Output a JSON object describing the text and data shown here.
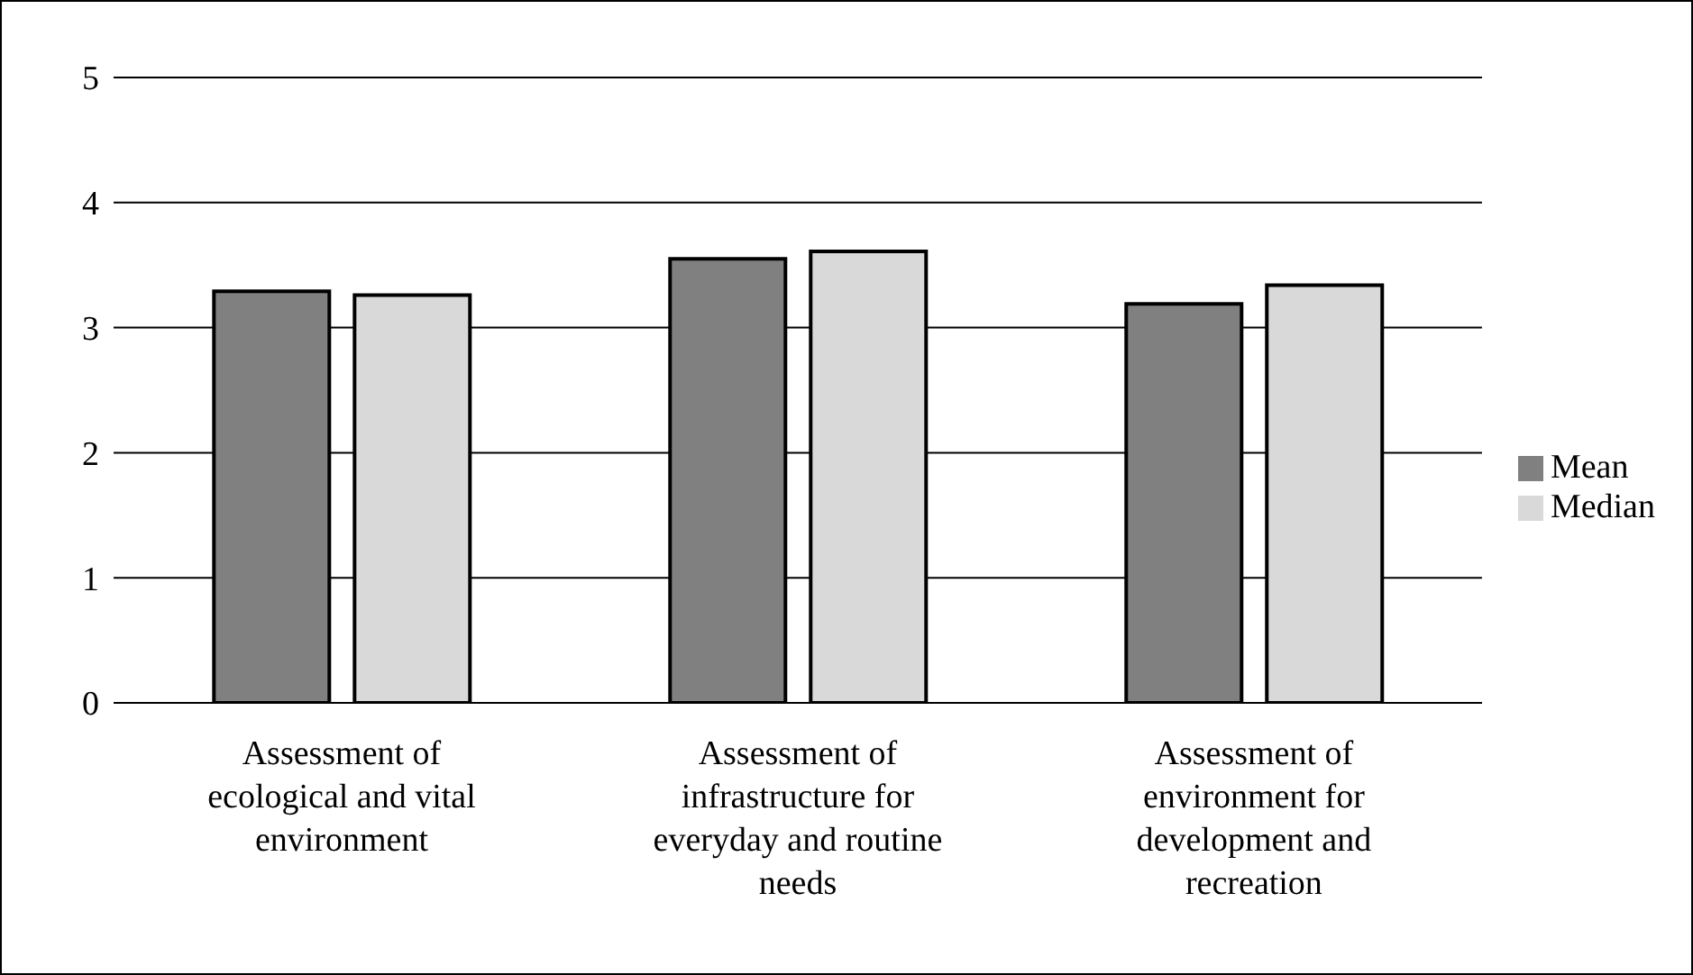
{
  "chart_data": {
    "type": "bar",
    "categories": [
      "Assessment of ecological and vital environment",
      "Assessment of infrastructure for everyday and routine needs",
      "Assessment of environment for development and recreation"
    ],
    "series": [
      {
        "name": "Mean",
        "color": "#808080",
        "values": [
          3.29,
          3.55,
          3.19
        ]
      },
      {
        "name": "Median",
        "color": "#d9d9d9",
        "values": [
          3.26,
          3.61,
          3.34
        ]
      }
    ],
    "ylim": [
      0,
      5
    ],
    "yticks": [
      0,
      1,
      2,
      3,
      4,
      5
    ],
    "grid": "y",
    "legend": "right"
  }
}
